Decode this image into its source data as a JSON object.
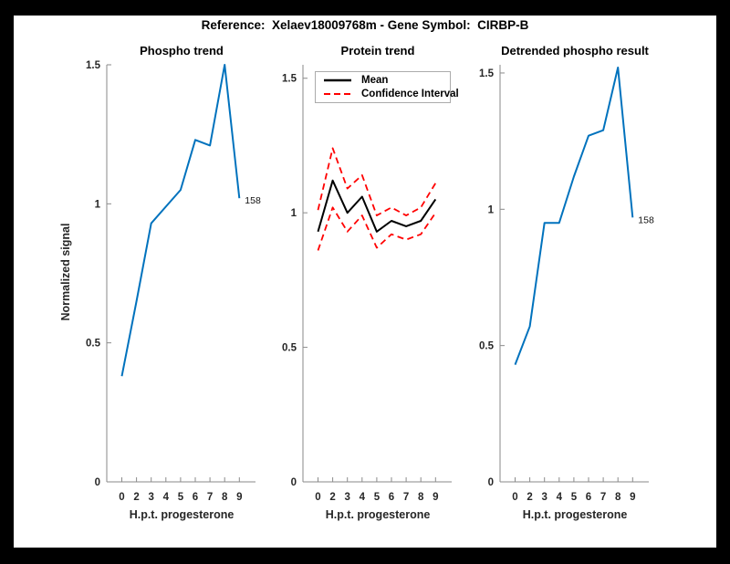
{
  "window": {
    "background": "#000000",
    "figure_background": "#ffffff"
  },
  "header": {
    "title": "Reference:  Xelaev18009768m - Gene Symbol:  CIRBP-B"
  },
  "chart_data": [
    {
      "type": "line",
      "title": "Phospho trend",
      "xlabel": "H.p.t. progesterone",
      "ylabel": "Normalized signal",
      "categories": [
        "0",
        "2",
        "3",
        "4",
        "5",
        "6",
        "7",
        "8",
        "9"
      ],
      "yticks": [
        0,
        0.5,
        1,
        1.5
      ],
      "ytick_labels": [
        "0",
        "0.5",
        "1",
        "1.5"
      ],
      "ylim": [
        0,
        1.5
      ],
      "grid": false,
      "legend": null,
      "series": [
        {
          "name": "Phospho signal",
          "color": "#0072BD",
          "style": "solid",
          "width": 2,
          "values": [
            0.38,
            0.65,
            0.93,
            0.99,
            1.05,
            1.23,
            1.21,
            1.5,
            1.02
          ]
        }
      ],
      "annotation": {
        "text": "158",
        "series": 0,
        "point_index": 8
      }
    },
    {
      "type": "line",
      "title": "Protein trend",
      "xlabel": "H.p.t. progesterone",
      "ylabel": "",
      "categories": [
        "0",
        "2",
        "3",
        "4",
        "5",
        "6",
        "7",
        "8",
        "9"
      ],
      "yticks": [
        0,
        0.5,
        1,
        1.5
      ],
      "ytick_labels": [
        "0",
        "0.5",
        "1",
        "1.5"
      ],
      "ylim": [
        0,
        1.55
      ],
      "grid": false,
      "legend": {
        "position": "northwest",
        "entries": [
          {
            "label": "Mean",
            "color": "#000000",
            "style": "solid"
          },
          {
            "label": "Confidence Interval",
            "color": "#ff0000",
            "style": "dashed"
          }
        ]
      },
      "series": [
        {
          "name": "Mean",
          "color": "#000000",
          "style": "solid",
          "width": 2,
          "values": [
            0.93,
            1.12,
            1.0,
            1.06,
            0.93,
            0.97,
            0.95,
            0.97,
            1.05
          ]
        },
        {
          "name": "Confidence Interval upper",
          "color": "#ff0000",
          "style": "dashed",
          "width": 1.8,
          "values": [
            1.01,
            1.24,
            1.09,
            1.14,
            0.99,
            1.02,
            0.99,
            1.02,
            1.11
          ]
        },
        {
          "name": "Confidence Interval lower",
          "color": "#ff0000",
          "style": "dashed",
          "width": 1.8,
          "values": [
            0.86,
            1.02,
            0.93,
            0.99,
            0.87,
            0.92,
            0.9,
            0.92,
            1.0
          ]
        }
      ],
      "annotation": null
    },
    {
      "type": "line",
      "title": "Detrended phospho result",
      "xlabel": "H.p.t. progesterone",
      "ylabel": "",
      "categories": [
        "0",
        "2",
        "3",
        "4",
        "5",
        "6",
        "7",
        "8",
        "9"
      ],
      "yticks": [
        0,
        0.5,
        1,
        1.5
      ],
      "ytick_labels": [
        "0",
        "0.5",
        "1",
        "1.5"
      ],
      "ylim": [
        0,
        1.53
      ],
      "grid": false,
      "legend": null,
      "series": [
        {
          "name": "Detrended phospho signal",
          "color": "#0072BD",
          "style": "solid",
          "width": 2,
          "values": [
            0.43,
            0.57,
            0.95,
            0.95,
            1.12,
            1.27,
            1.29,
            1.52,
            0.97
          ]
        }
      ],
      "annotation": {
        "text": "158",
        "series": 0,
        "point_index": 8
      }
    }
  ]
}
